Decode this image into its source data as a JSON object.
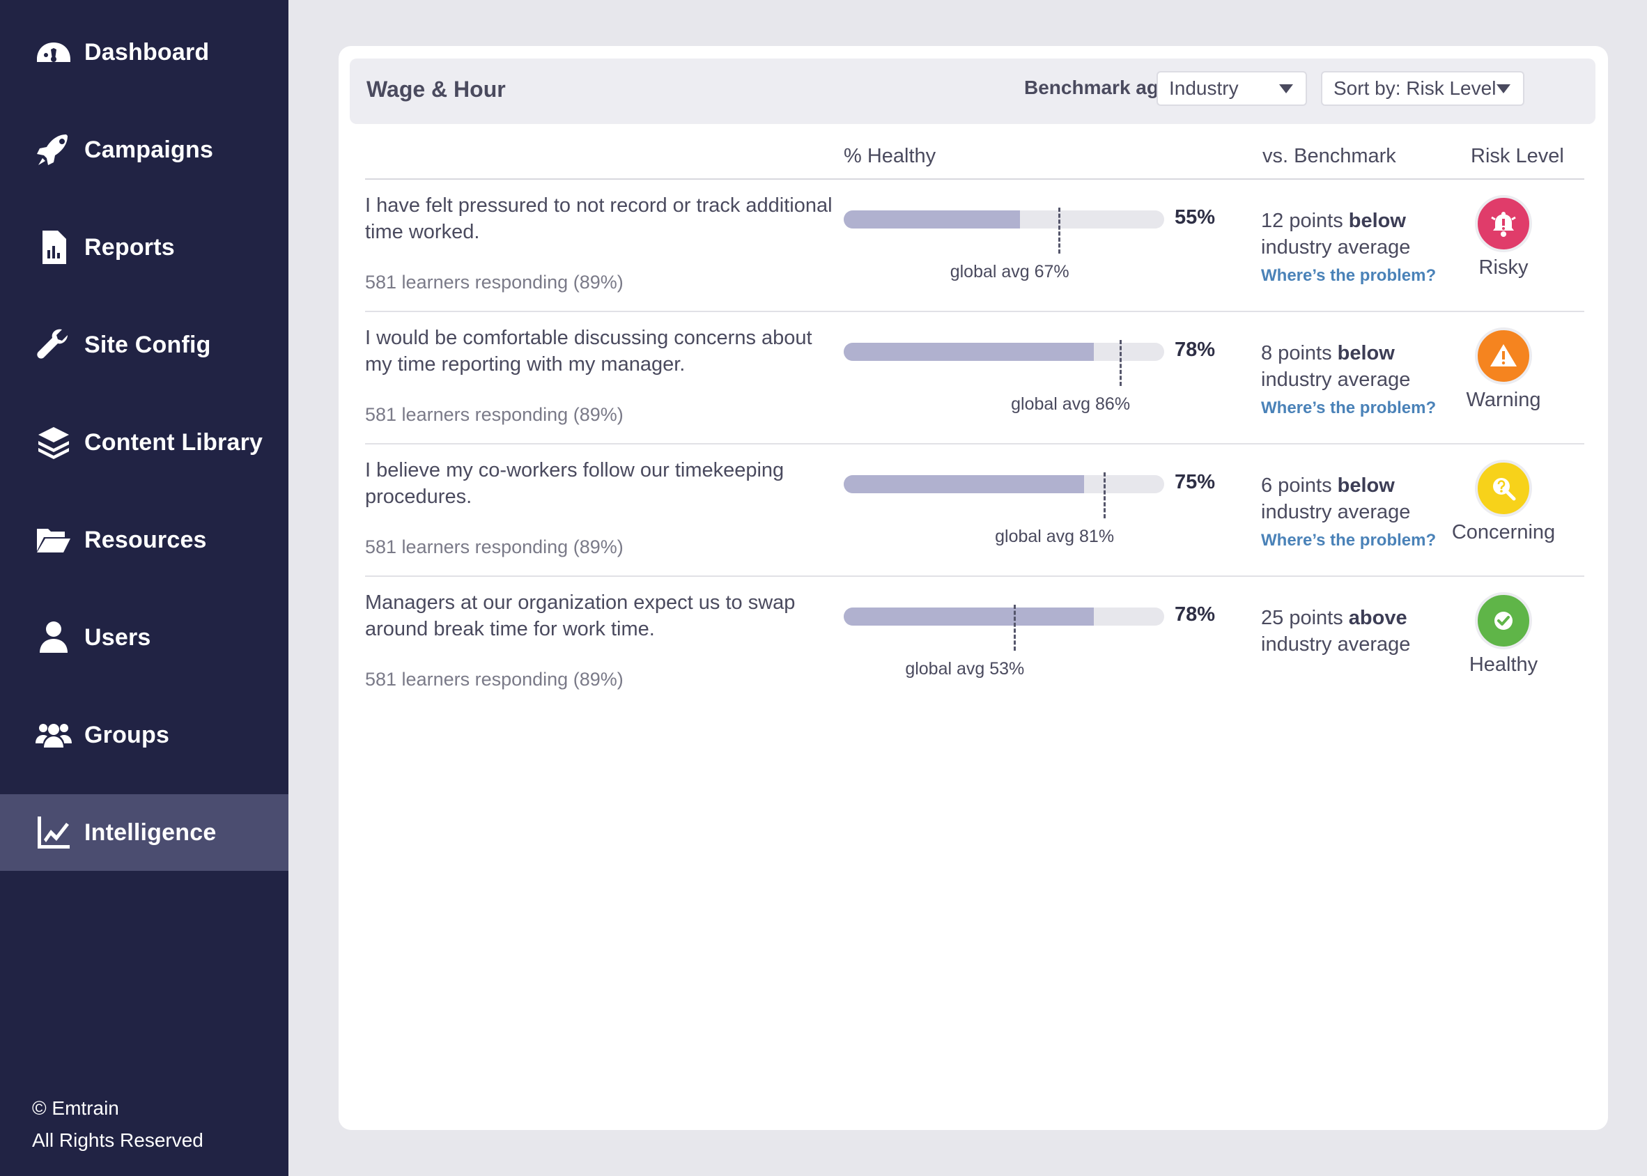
{
  "sidebar": {
    "items": [
      {
        "label": "Dashboard",
        "icon": "dashboard-gauge-icon"
      },
      {
        "label": "Campaigns",
        "icon": "rocket-icon"
      },
      {
        "label": "Reports",
        "icon": "report-file-icon"
      },
      {
        "label": "Site Config",
        "icon": "wrench-icon"
      },
      {
        "label": "Content Library",
        "icon": "layers-icon"
      },
      {
        "label": "Resources",
        "icon": "folder-open-icon"
      },
      {
        "label": "Users",
        "icon": "user-icon"
      },
      {
        "label": "Groups",
        "icon": "users-group-icon"
      },
      {
        "label": "Intelligence",
        "icon": "line-chart-icon",
        "active": true
      }
    ],
    "copyright_line1": "© Emtrain",
    "copyright_line2": "All Rights Reserved"
  },
  "card": {
    "title": "Wage & Hour",
    "benchmark_label": "Benchmark against:",
    "benchmark_value": "Industry",
    "sort_value": "Sort by: Risk Level"
  },
  "columns": {
    "healthy": "% Healthy",
    "benchmark": "vs. Benchmark",
    "risk": "Risk Level"
  },
  "rows": [
    {
      "question": "I have felt pressured to not record or track additional time worked.",
      "responders": "581 learners responding (89%)",
      "healthy_pct": 55,
      "healthy_label": "55%",
      "global_avg_pct": 67,
      "global_avg_label": "global avg 67%",
      "vs_prefix": "12 points ",
      "vs_direction": "below",
      "vs_suffix": "industry average",
      "problem_link": "Where’s the problem?",
      "risk_label": "Risky",
      "risk_icon": "bell-alert-icon",
      "risk_color": "#e03c6a"
    },
    {
      "question": "I would be comfortable discussing concerns about my time reporting with my manager.",
      "responders": "581 learners responding (89%)",
      "healthy_pct": 78,
      "healthy_label": "78%",
      "global_avg_pct": 86,
      "global_avg_label": "global avg 86%",
      "vs_prefix": "8 points ",
      "vs_direction": "below",
      "vs_suffix": "industry average",
      "problem_link": "Where’s the problem?",
      "risk_label": "Warning",
      "risk_icon": "warning-triangle-icon",
      "risk_color": "#f5841f"
    },
    {
      "question": "I believe my co-workers follow our timekeeping procedures.",
      "responders": "581 learners responding (89%)",
      "healthy_pct": 75,
      "healthy_label": "75%",
      "global_avg_pct": 81,
      "global_avg_label": "global avg 81%",
      "vs_prefix": "6 points ",
      "vs_direction": "below",
      "vs_suffix": "industry average",
      "problem_link": "Where’s the problem?",
      "risk_label": "Concerning",
      "risk_icon": "search-question-icon",
      "risk_color": "#f7d21a"
    },
    {
      "question": "Managers at our organization expect us to swap around break time for work time.",
      "responders": "581 learners responding (89%)",
      "healthy_pct": 78,
      "healthy_label": "78%",
      "global_avg_pct": 53,
      "global_avg_label": "global avg 53%",
      "vs_prefix": "25 points ",
      "vs_direction": "above",
      "vs_suffix": "industry average",
      "problem_link": "",
      "risk_label": "Healthy",
      "risk_icon": "check-circle-icon",
      "risk_color": "#5fb548"
    }
  ]
}
